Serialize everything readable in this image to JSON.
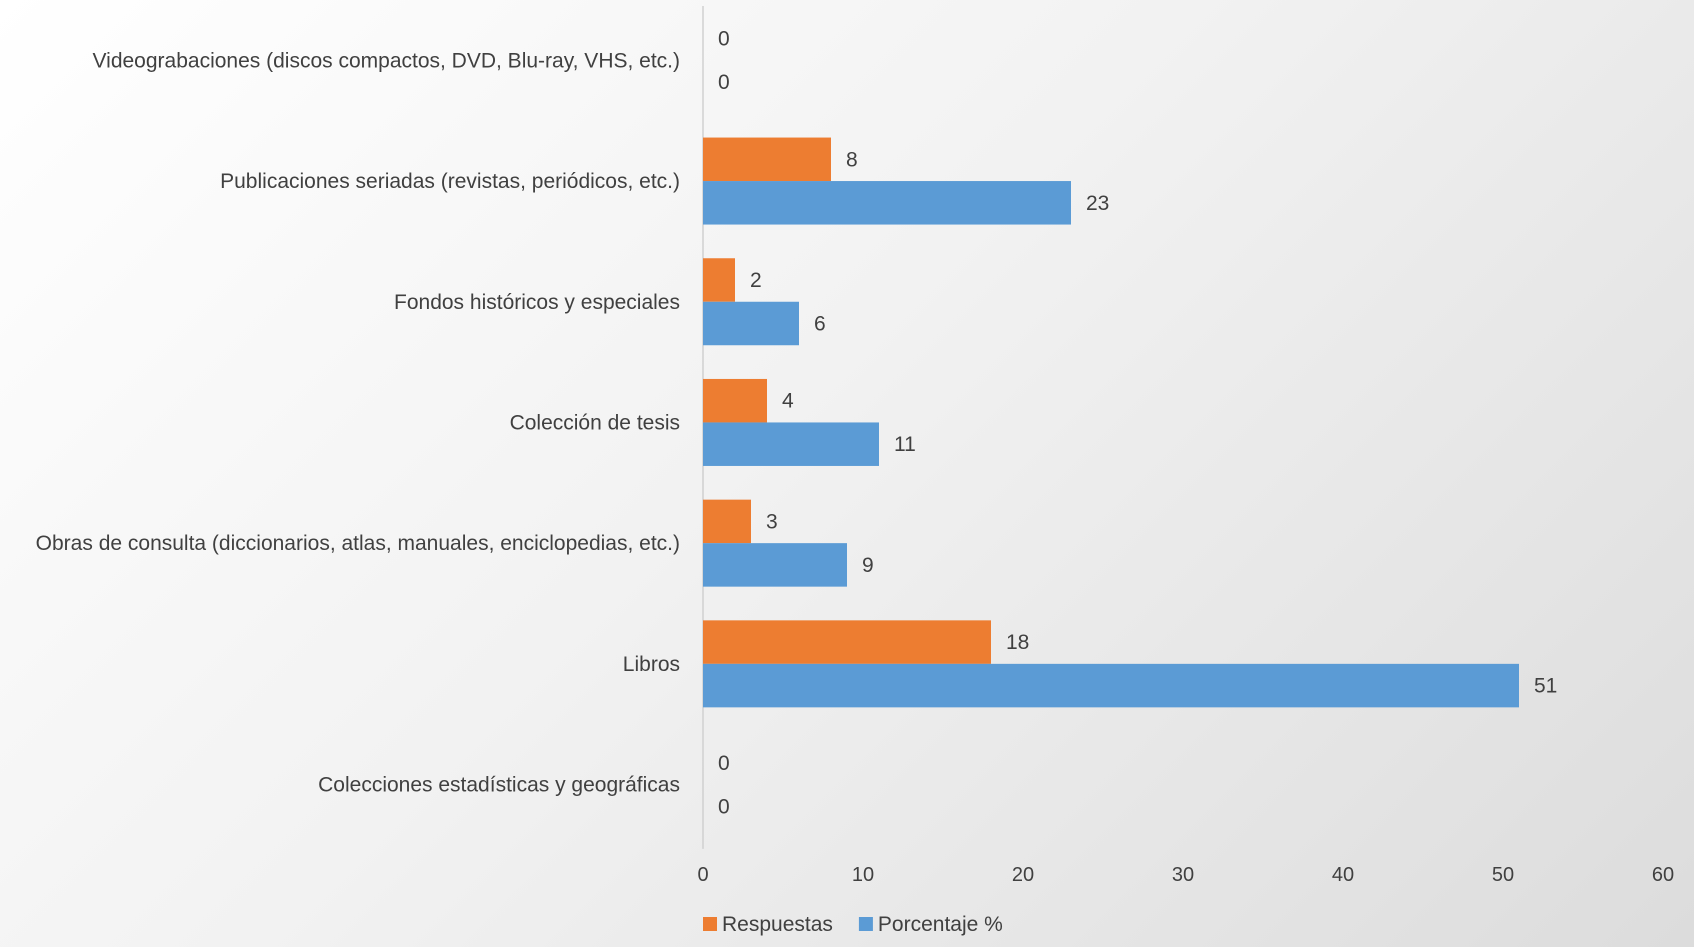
{
  "chart_data": {
    "type": "bar",
    "orientation": "horizontal",
    "title": "",
    "xlabel": "",
    "ylabel": "",
    "categories": [
      "Videograbaciones (discos compactos, DVD, Blu-ray, VHS, etc.)",
      "Publicaciones seriadas (revistas, periódicos, etc.)",
      "Fondos históricos y especiales",
      "Colección de tesis",
      "Obras de consulta (diccionarios, atlas, manuales, enciclopedias, etc.)",
      "Libros",
      "Colecciones estadísticas y geográficas"
    ],
    "series": [
      {
        "name": "Respuestas",
        "color": "#ED7D31",
        "values": [
          0,
          8,
          2,
          4,
          3,
          18,
          0
        ]
      },
      {
        "name": "Porcentaje %",
        "color": "#5B9BD5",
        "values": [
          0,
          23,
          6,
          11,
          9,
          51,
          0
        ]
      }
    ],
    "xlim": [
      0,
      60
    ],
    "xticks": [
      "0",
      "10",
      "20",
      "30",
      "40",
      "50",
      "60"
    ],
    "grid": false,
    "legend": "bottom",
    "data_labels": true
  }
}
